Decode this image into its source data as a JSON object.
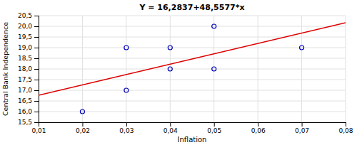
{
  "chart_data": {
    "type": "scatter",
    "title": "Y = 16,2837+48,5577*x",
    "xlabel": "Inflation",
    "ylabel": "Central Bank Independence",
    "series": [
      {
        "type": "scatter",
        "marker": "open-circle",
        "color": "#0000bb",
        "x": [
          0.02,
          0.03,
          0.03,
          0.04,
          0.04,
          0.05,
          0.05,
          0.07
        ],
        "values": [
          16.0,
          17.0,
          19.0,
          18.0,
          19.0,
          20.0,
          18.0,
          19.0
        ]
      },
      {
        "type": "line",
        "line_style": "solid",
        "color": "#dd0000",
        "x": [
          0.01,
          0.08
        ],
        "values": [
          16.769277,
          20.168316
        ]
      }
    ],
    "xlim": [
      0.01,
      0.08
    ],
    "ylim": [
      15.5,
      20.5
    ],
    "xticks": [
      {
        "value": 0.01,
        "label": "0,01"
      },
      {
        "value": 0.02,
        "label": "0,02"
      },
      {
        "value": 0.03,
        "label": "0,03"
      },
      {
        "value": 0.04,
        "label": "0,04"
      },
      {
        "value": 0.05,
        "label": "0,05"
      },
      {
        "value": 0.06,
        "label": "0,06"
      },
      {
        "value": 0.07,
        "label": "0,07"
      },
      {
        "value": 0.08,
        "label": "0,08"
      }
    ],
    "yticks": [
      {
        "value": 15.5,
        "label": "15,5"
      },
      {
        "value": 16.0,
        "label": "16,0"
      },
      {
        "value": 16.5,
        "label": "16,5"
      },
      {
        "value": 17.0,
        "label": "17,0"
      },
      {
        "value": 17.5,
        "label": "17,5"
      },
      {
        "value": 18.0,
        "label": "18,0"
      },
      {
        "value": 18.5,
        "label": "18,5"
      },
      {
        "value": 19.0,
        "label": "19,0"
      },
      {
        "value": 19.5,
        "label": "19,5"
      },
      {
        "value": 20.0,
        "label": "20,0"
      },
      {
        "value": 20.5,
        "label": "20,5"
      }
    ],
    "grid": true
  }
}
